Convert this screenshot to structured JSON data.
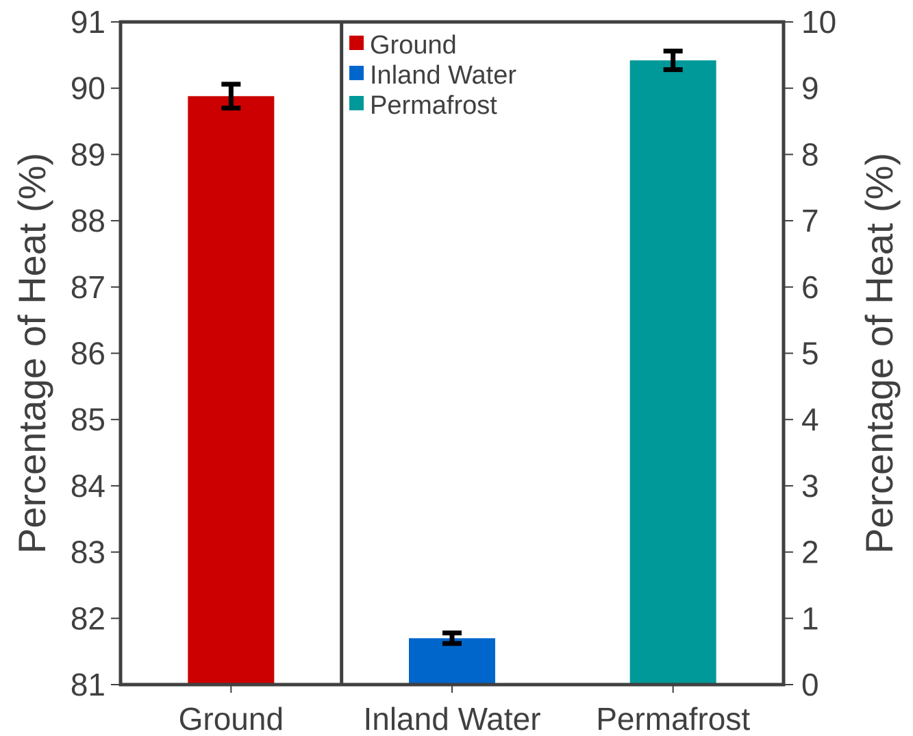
{
  "chart_data": {
    "type": "bar",
    "categories": [
      "Ground",
      "Inland Water",
      "Permafrost"
    ],
    "values": [
      89.88,
      0.7,
      9.42
    ],
    "errors": [
      0.18,
      0.08,
      0.14
    ],
    "value_axis": [
      "left",
      "right",
      "right"
    ],
    "colors": [
      "#cc0000",
      "#0066cc",
      "#009999"
    ],
    "error_color": "#000000",
    "ylabel_left": "Percentage of Heat (%)",
    "ylabel_right": "Percentage of Heat (%)",
    "ylim_left": [
      81,
      91
    ],
    "ylim_right": [
      0,
      10
    ],
    "yticks_left": [
      "81",
      "82",
      "83",
      "84",
      "85",
      "86",
      "87",
      "88",
      "89",
      "90",
      "91"
    ],
    "yticks_right": [
      "0",
      "1",
      "2",
      "3",
      "4",
      "5",
      "6",
      "7",
      "8",
      "9",
      "10"
    ],
    "legend": {
      "position": "top-center",
      "entries": [
        "Ground",
        "Inland Water",
        "Permafrost"
      ]
    },
    "grid": false,
    "divider_between": [
      "Ground",
      "Inland Water"
    ]
  }
}
